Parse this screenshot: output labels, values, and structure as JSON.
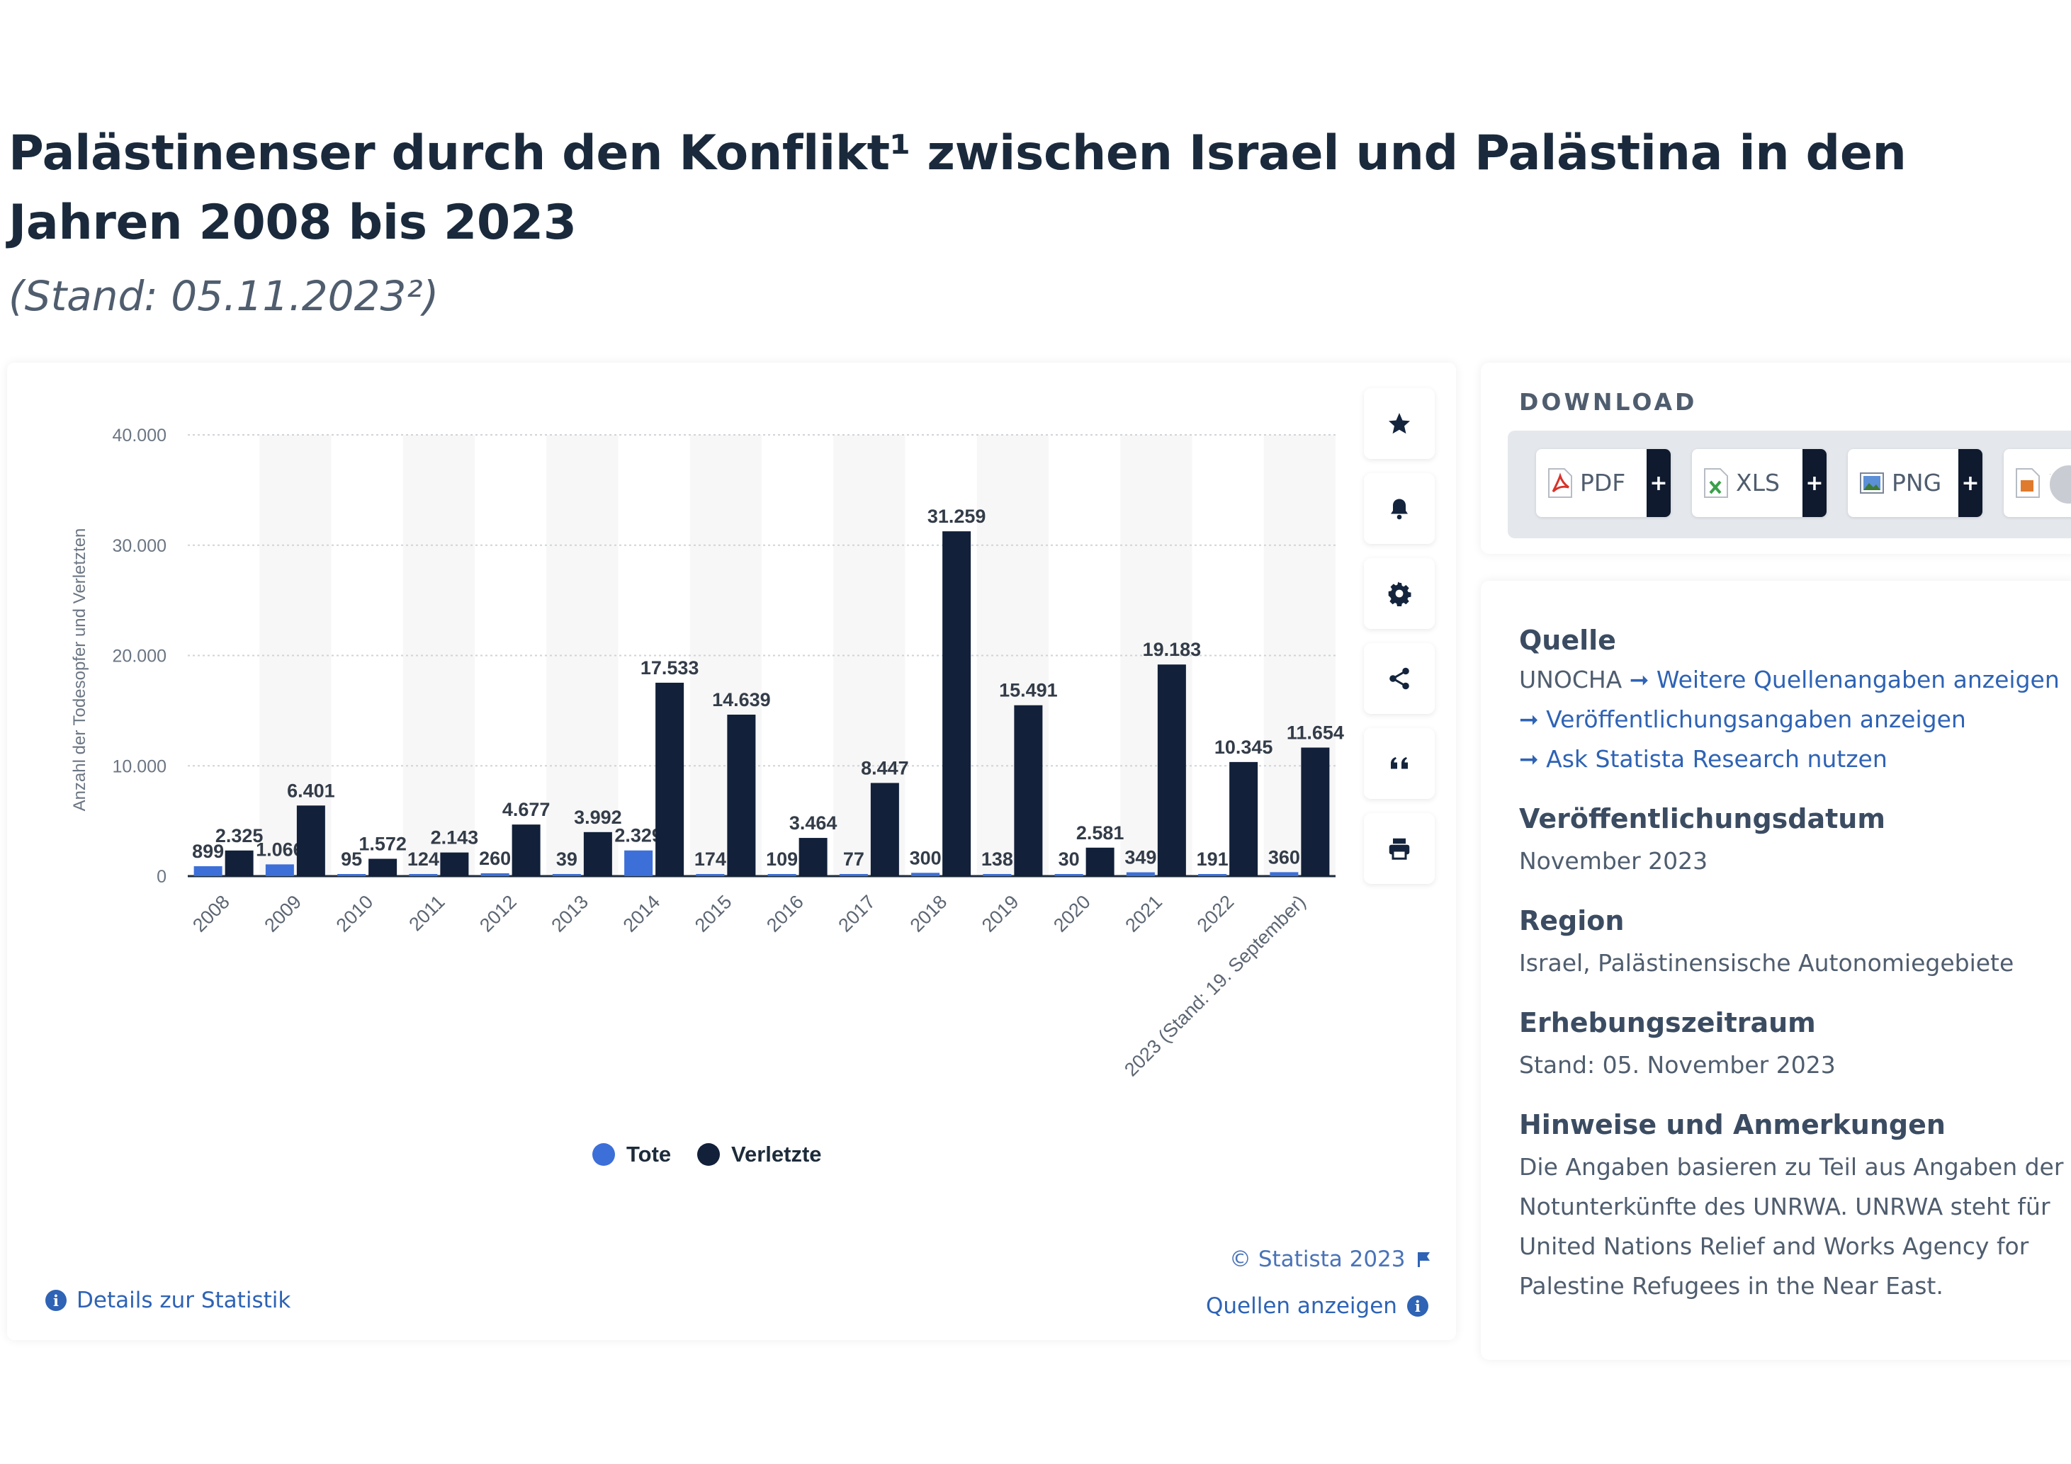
{
  "page": {
    "title": "Palästinenser durch den Konflikt¹ zwischen Israel und Palästina in den Jahren 2008 bis 2023",
    "subtitle": "(Stand: 05.11.2023²)"
  },
  "colors": {
    "tote": "#3d6fd8",
    "verletzte": "#12203a",
    "link": "#2e63b5"
  },
  "toolbar": {
    "icons": [
      "star-icon",
      "bell-icon",
      "gear-icon",
      "share-icon",
      "quote-icon",
      "print-icon"
    ]
  },
  "chart_data": {
    "type": "bar",
    "ylabel": "Anzahl der Todesopfer und Verletzten",
    "ylim": [
      0,
      40000
    ],
    "y_ticks": [
      "0",
      "10.000",
      "20.000",
      "30.000",
      "40.000"
    ],
    "y_tick_values": [
      0,
      10000,
      20000,
      30000,
      40000
    ],
    "categories": [
      "2008",
      "2009",
      "2010",
      "2011",
      "2012",
      "2013",
      "2014",
      "2015",
      "2016",
      "2017",
      "2018",
      "2019",
      "2020",
      "2021",
      "2022",
      "2023 (Stand: 19. September)"
    ],
    "series": [
      {
        "name": "Tote",
        "values": [
          899,
          1066,
          95,
          124,
          260,
          39,
          2329,
          174,
          109,
          77,
          300,
          138,
          30,
          349,
          191,
          360
        ],
        "labels": [
          "899",
          "1.066",
          "95",
          "124",
          "260",
          "39",
          "2.329",
          "174",
          "109",
          "77",
          "300",
          "138",
          "30",
          "349",
          "191",
          "360"
        ]
      },
      {
        "name": "Verletzte",
        "values": [
          2325,
          6401,
          1572,
          2143,
          4677,
          3992,
          17533,
          14639,
          3464,
          8447,
          31259,
          15491,
          2581,
          19183,
          10345,
          11654
        ],
        "labels": [
          "2.325",
          "6.401",
          "1.572",
          "2.143",
          "4.677",
          "3.992",
          "17.533",
          "14.639",
          "3.464",
          "8.447",
          "31.259",
          "15.491",
          "2.581",
          "19.183",
          "10.345",
          "11.654"
        ]
      }
    ],
    "legend": "bottom-center",
    "grid": true
  },
  "chart_footer": {
    "details": "Details zur Statistik",
    "copyright": "© Statista 2023",
    "sources": "Quellen anzeigen"
  },
  "download": {
    "label": "DOWNLOAD",
    "buttons": [
      "PDF",
      "XLS",
      "PNG",
      "P"
    ]
  },
  "meta": {
    "quelle_h": "Quelle",
    "quelle_v": "UNOCHA",
    "quelle_link1": "Weitere Quellenangaben anzeigen",
    "quelle_link2": "Veröffentlichungsangaben anzeigen",
    "quelle_link3": "Ask Statista Research nutzen",
    "datum_h": "Veröffentlichungsdatum",
    "datum_v": "November 2023",
    "region_h": "Region",
    "region_v": "Israel, Palästinensische Autonomiegebiete",
    "zeitraum_h": "Erhebungszeitraum",
    "zeitraum_v": "Stand: 05. November 2023",
    "hinweise_h": "Hinweise und Anmerkungen",
    "hinweise_v": "Die Angaben basieren zu Teil aus Angaben der Notunterkünfte des UNRWA. UNRWA steht für United Nations Relief and Works Agency for Palestine Refugees in the Near East."
  }
}
